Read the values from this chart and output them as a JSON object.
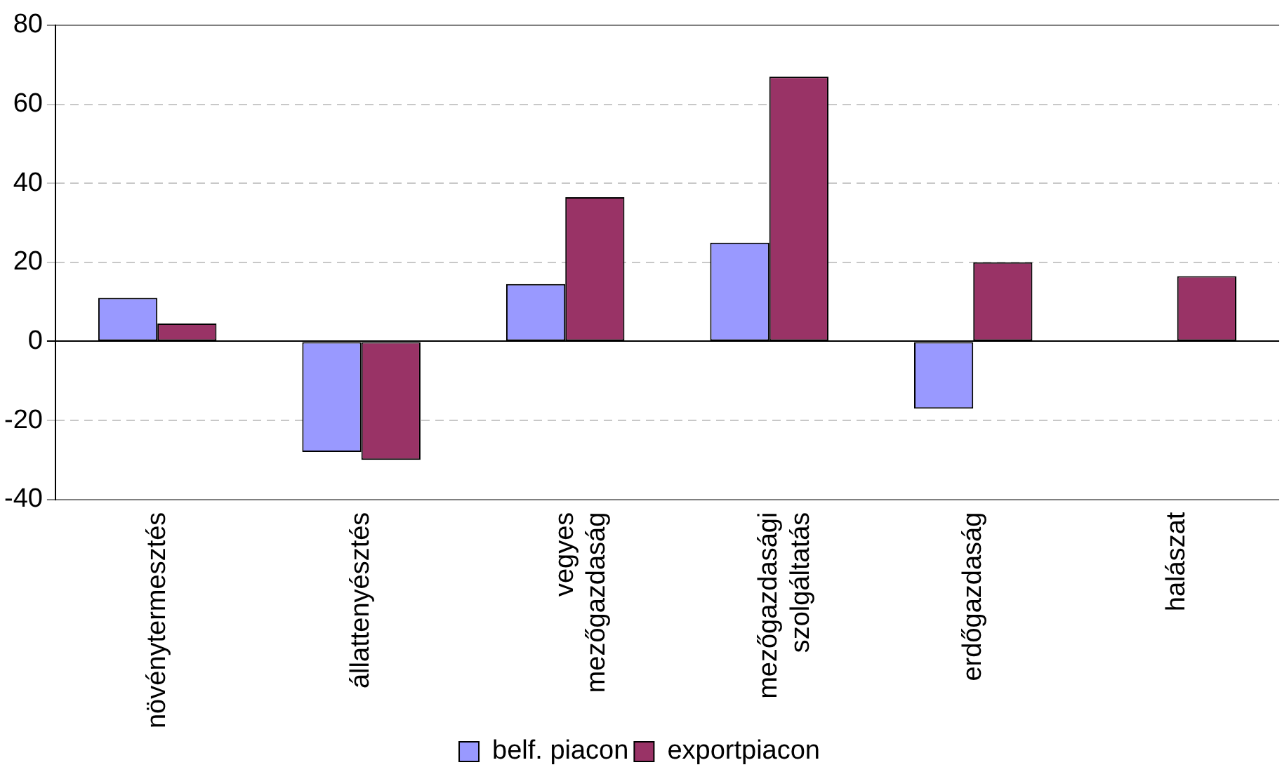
{
  "chart_data": {
    "type": "bar",
    "categories": [
      "növénytermesztés",
      "állattenyésztés",
      "vegyes\nmezőgazdaság",
      "mezőgazdasági\nszolgáltatás",
      "erdőgazdaság",
      "halászat"
    ],
    "series": [
      {
        "name": "belf. piacon",
        "color": "#9999ff",
        "values": [
          11,
          -28,
          14.5,
          25,
          -17,
          null
        ]
      },
      {
        "name": "exportpiacon",
        "color": "#993366",
        "values": [
          4.5,
          -30,
          36.5,
          67,
          20,
          16.5
        ]
      }
    ],
    "ylim": [
      -40,
      80
    ],
    "yticks": [
      -40,
      -20,
      0,
      20,
      40,
      60,
      80
    ],
    "grid": "y",
    "legend": "bottom"
  }
}
